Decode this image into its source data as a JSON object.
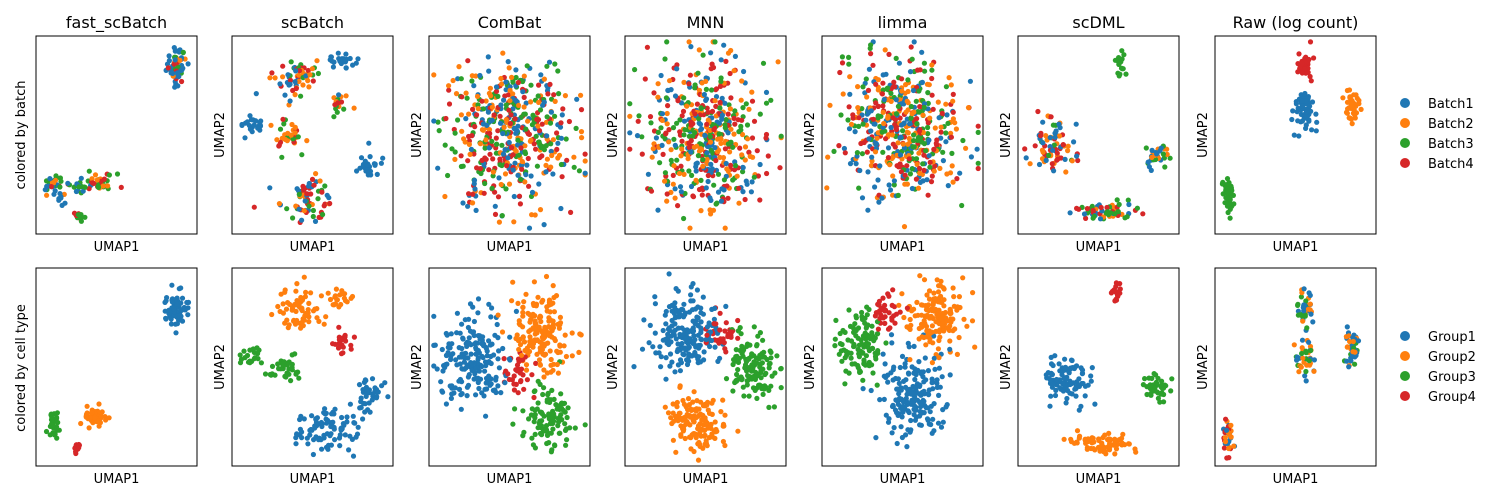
{
  "figure": {
    "row_labels": [
      "colored by batch",
      "colored by cell type"
    ],
    "batch_legend": [
      {
        "label": "Batch1",
        "color": "#1f77b4"
      },
      {
        "label": "Batch2",
        "color": "#ff7f0e"
      },
      {
        "label": "Batch3",
        "color": "#2ca02c"
      },
      {
        "label": "Batch4",
        "color": "#d62728"
      }
    ],
    "type_legend": [
      {
        "label": "Group1",
        "color": "#1f77b4"
      },
      {
        "label": "Group2",
        "color": "#ff7f0e"
      },
      {
        "label": "Group3",
        "color": "#2ca02c"
      },
      {
        "label": "Group4",
        "color": "#d62728"
      }
    ]
  },
  "chart_data": [
    {
      "type": "scatter",
      "title": "fast_scBatch",
      "xlabel": "UMAP1",
      "ylabel": "",
      "color_by": "batch",
      "xlim": [
        0,
        1
      ],
      "ylim": [
        0,
        1
      ],
      "clusters": [
        {
          "x": 0.87,
          "y": 0.85,
          "sx": 0.04,
          "sy": 0.06,
          "n": 60,
          "groups": [
            0,
            0,
            0,
            1,
            2,
            3
          ]
        },
        {
          "x": 0.1,
          "y": 0.25,
          "sx": 0.05,
          "sy": 0.03,
          "n": 30,
          "groups": [
            0,
            2,
            3,
            1
          ]
        },
        {
          "x": 0.4,
          "y": 0.26,
          "sx": 0.06,
          "sy": 0.03,
          "n": 35,
          "groups": [
            1,
            2,
            3
          ]
        },
        {
          "x": 0.26,
          "y": 0.24,
          "sx": 0.04,
          "sy": 0.03,
          "n": 18,
          "groups": [
            0,
            2
          ]
        },
        {
          "x": 0.27,
          "y": 0.09,
          "sx": 0.02,
          "sy": 0.02,
          "n": 10,
          "groups": [
            2,
            3
          ]
        },
        {
          "x": 0.15,
          "y": 0.17,
          "sx": 0.02,
          "sy": 0.02,
          "n": 8,
          "groups": [
            0
          ]
        }
      ]
    },
    {
      "type": "scatter",
      "title": "scBatch",
      "xlabel": "UMAP1",
      "ylabel": "UMAP2",
      "color_by": "batch",
      "xlim": [
        0,
        1
      ],
      "ylim": [
        0,
        1
      ],
      "clusters": [
        {
          "x": 0.38,
          "y": 0.79,
          "sx": 0.09,
          "sy": 0.07,
          "n": 60,
          "groups": [
            0,
            1,
            2,
            3
          ]
        },
        {
          "x": 0.68,
          "y": 0.87,
          "sx": 0.07,
          "sy": 0.03,
          "n": 25,
          "groups": [
            0
          ]
        },
        {
          "x": 0.66,
          "y": 0.65,
          "sx": 0.04,
          "sy": 0.05,
          "n": 18,
          "groups": [
            0,
            1,
            2,
            3
          ]
        },
        {
          "x": 0.12,
          "y": 0.55,
          "sx": 0.05,
          "sy": 0.03,
          "n": 22,
          "groups": [
            0
          ]
        },
        {
          "x": 0.34,
          "y": 0.5,
          "sx": 0.07,
          "sy": 0.05,
          "n": 35,
          "groups": [
            1,
            2,
            3
          ]
        },
        {
          "x": 0.47,
          "y": 0.18,
          "sx": 0.11,
          "sy": 0.07,
          "n": 70,
          "groups": [
            0,
            1,
            2,
            3
          ]
        },
        {
          "x": 0.84,
          "y": 0.34,
          "sx": 0.05,
          "sy": 0.05,
          "n": 30,
          "groups": [
            0
          ]
        }
      ]
    },
    {
      "type": "scatter",
      "title": "ComBat",
      "xlabel": "UMAP1",
      "ylabel": "UMAP2",
      "color_by": "batch",
      "xlim": [
        0,
        1
      ],
      "ylim": [
        0,
        1
      ],
      "clusters": [
        {
          "x": 0.5,
          "y": 0.5,
          "sx": 0.25,
          "sy": 0.24,
          "n": 520,
          "groups": [
            0,
            1,
            2,
            3
          ]
        }
      ]
    },
    {
      "type": "scatter",
      "title": "MNN",
      "xlabel": "UMAP1",
      "ylabel": "UMAP2",
      "color_by": "batch",
      "xlim": [
        0,
        1
      ],
      "ylim": [
        0,
        1
      ],
      "clusters": [
        {
          "x": 0.5,
          "y": 0.5,
          "sx": 0.24,
          "sy": 0.24,
          "n": 520,
          "groups": [
            0,
            1,
            2,
            3
          ]
        }
      ]
    },
    {
      "type": "scatter",
      "title": "limma",
      "xlabel": "UMAP1",
      "ylabel": "UMAP2",
      "color_by": "batch",
      "xlim": [
        0,
        1
      ],
      "ylim": [
        0,
        1
      ],
      "clusters": [
        {
          "x": 0.5,
          "y": 0.53,
          "sx": 0.24,
          "sy": 0.23,
          "n": 520,
          "groups": [
            0,
            1,
            2,
            3
          ]
        }
      ]
    },
    {
      "type": "scatter",
      "title": "scDML",
      "xlabel": "UMAP1",
      "ylabel": "UMAP2",
      "color_by": "batch",
      "xlim": [
        0,
        1
      ],
      "ylim": [
        0,
        1
      ],
      "clusters": [
        {
          "x": 0.63,
          "y": 0.87,
          "sx": 0.02,
          "sy": 0.04,
          "n": 18,
          "groups": [
            2
          ]
        },
        {
          "x": 0.23,
          "y": 0.44,
          "sx": 0.09,
          "sy": 0.08,
          "n": 80,
          "groups": [
            0,
            1,
            2,
            3
          ]
        },
        {
          "x": 0.86,
          "y": 0.4,
          "sx": 0.05,
          "sy": 0.05,
          "n": 35,
          "groups": [
            0,
            1,
            2
          ]
        },
        {
          "x": 0.53,
          "y": 0.11,
          "sx": 0.14,
          "sy": 0.03,
          "n": 60,
          "groups": [
            0,
            1,
            2,
            3
          ]
        }
      ]
    },
    {
      "type": "scatter",
      "title": "Raw (log count)",
      "xlabel": "UMAP1",
      "ylabel": "UMAP2",
      "color_by": "batch",
      "xlim": [
        0,
        1
      ],
      "ylim": [
        0,
        1
      ],
      "clusters": [
        {
          "x": 0.55,
          "y": 0.85,
          "sx": 0.03,
          "sy": 0.04,
          "n": 35,
          "groups": [
            3
          ]
        },
        {
          "x": 0.56,
          "y": 0.64,
          "sx": 0.04,
          "sy": 0.07,
          "n": 55,
          "groups": [
            0
          ]
        },
        {
          "x": 0.85,
          "y": 0.64,
          "sx": 0.03,
          "sy": 0.06,
          "n": 45,
          "groups": [
            1
          ]
        },
        {
          "x": 0.08,
          "y": 0.19,
          "sx": 0.02,
          "sy": 0.07,
          "n": 45,
          "groups": [
            2
          ]
        }
      ]
    },
    {
      "type": "scatter",
      "title": "",
      "xlabel": "UMAP1",
      "ylabel": "",
      "color_by": "cell type",
      "xlim": [
        0,
        1
      ],
      "ylim": [
        0,
        1
      ],
      "clusters": [
        {
          "x": 0.87,
          "y": 0.8,
          "sx": 0.04,
          "sy": 0.07,
          "n": 70,
          "groups": [
            0
          ]
        },
        {
          "x": 0.11,
          "y": 0.21,
          "sx": 0.03,
          "sy": 0.04,
          "n": 30,
          "groups": [
            2
          ]
        },
        {
          "x": 0.37,
          "y": 0.25,
          "sx": 0.06,
          "sy": 0.03,
          "n": 40,
          "groups": [
            1
          ]
        },
        {
          "x": 0.26,
          "y": 0.09,
          "sx": 0.02,
          "sy": 0.02,
          "n": 12,
          "groups": [
            3
          ]
        }
      ]
    },
    {
      "type": "scatter",
      "title": "",
      "xlabel": "UMAP1",
      "ylabel": "UMAP2",
      "color_by": "cell type",
      "xlim": [
        0,
        1
      ],
      "ylim": [
        0,
        1
      ],
      "clusters": [
        {
          "x": 0.43,
          "y": 0.8,
          "sx": 0.09,
          "sy": 0.07,
          "n": 70,
          "groups": [
            1
          ]
        },
        {
          "x": 0.68,
          "y": 0.84,
          "sx": 0.05,
          "sy": 0.03,
          "n": 20,
          "groups": [
            1
          ]
        },
        {
          "x": 0.68,
          "y": 0.62,
          "sx": 0.04,
          "sy": 0.05,
          "n": 22,
          "groups": [
            3
          ]
        },
        {
          "x": 0.11,
          "y": 0.55,
          "sx": 0.05,
          "sy": 0.03,
          "n": 20,
          "groups": [
            2
          ]
        },
        {
          "x": 0.33,
          "y": 0.49,
          "sx": 0.07,
          "sy": 0.04,
          "n": 35,
          "groups": [
            2
          ]
        },
        {
          "x": 0.6,
          "y": 0.18,
          "sx": 0.13,
          "sy": 0.08,
          "n": 90,
          "groups": [
            0
          ]
        },
        {
          "x": 0.84,
          "y": 0.36,
          "sx": 0.06,
          "sy": 0.05,
          "n": 35,
          "groups": [
            0
          ]
        }
      ]
    },
    {
      "type": "scatter",
      "title": "",
      "xlabel": "UMAP1",
      "ylabel": "UMAP2",
      "color_by": "cell type",
      "xlim": [
        0,
        1
      ],
      "ylim": [
        0,
        1
      ],
      "clusters": [
        {
          "x": 0.28,
          "y": 0.55,
          "sx": 0.14,
          "sy": 0.15,
          "n": 190,
          "groups": [
            0
          ]
        },
        {
          "x": 0.7,
          "y": 0.67,
          "sx": 0.12,
          "sy": 0.14,
          "n": 170,
          "groups": [
            1
          ]
        },
        {
          "x": 0.74,
          "y": 0.24,
          "sx": 0.11,
          "sy": 0.1,
          "n": 110,
          "groups": [
            2
          ]
        },
        {
          "x": 0.55,
          "y": 0.48,
          "sx": 0.06,
          "sy": 0.07,
          "n": 35,
          "groups": [
            3
          ]
        }
      ]
    },
    {
      "type": "scatter",
      "title": "",
      "xlabel": "UMAP1",
      "ylabel": "UMAP2",
      "color_by": "cell type",
      "xlim": [
        0,
        1
      ],
      "ylim": [
        0,
        1
      ],
      "clusters": [
        {
          "x": 0.38,
          "y": 0.67,
          "sx": 0.14,
          "sy": 0.13,
          "n": 190,
          "groups": [
            0
          ]
        },
        {
          "x": 0.45,
          "y": 0.22,
          "sx": 0.13,
          "sy": 0.1,
          "n": 140,
          "groups": [
            1
          ]
        },
        {
          "x": 0.79,
          "y": 0.5,
          "sx": 0.09,
          "sy": 0.12,
          "n": 130,
          "groups": [
            2
          ]
        },
        {
          "x": 0.6,
          "y": 0.67,
          "sx": 0.07,
          "sy": 0.06,
          "n": 35,
          "groups": [
            3
          ]
        }
      ]
    },
    {
      "type": "scatter",
      "title": "",
      "xlabel": "UMAP1",
      "ylabel": "UMAP2",
      "color_by": "cell type",
      "xlim": [
        0,
        1
      ],
      "ylim": [
        0,
        1
      ],
      "clusters": [
        {
          "x": 0.55,
          "y": 0.35,
          "sx": 0.13,
          "sy": 0.15,
          "n": 190,
          "groups": [
            0
          ]
        },
        {
          "x": 0.7,
          "y": 0.75,
          "sx": 0.12,
          "sy": 0.11,
          "n": 150,
          "groups": [
            1
          ]
        },
        {
          "x": 0.23,
          "y": 0.62,
          "sx": 0.09,
          "sy": 0.11,
          "n": 110,
          "groups": [
            2
          ]
        },
        {
          "x": 0.42,
          "y": 0.77,
          "sx": 0.06,
          "sy": 0.06,
          "n": 35,
          "groups": [
            3
          ]
        }
      ]
    },
    {
      "type": "scatter",
      "title": "",
      "xlabel": "UMAP1",
      "ylabel": "UMAP2",
      "color_by": "cell type",
      "xlim": [
        0,
        1
      ],
      "ylim": [
        0,
        1
      ],
      "clusters": [
        {
          "x": 0.61,
          "y": 0.87,
          "sx": 0.02,
          "sy": 0.04,
          "n": 18,
          "groups": [
            3
          ]
        },
        {
          "x": 0.3,
          "y": 0.43,
          "sx": 0.1,
          "sy": 0.09,
          "n": 90,
          "groups": [
            0
          ]
        },
        {
          "x": 0.86,
          "y": 0.39,
          "sx": 0.05,
          "sy": 0.05,
          "n": 40,
          "groups": [
            2
          ]
        },
        {
          "x": 0.5,
          "y": 0.11,
          "sx": 0.14,
          "sy": 0.03,
          "n": 75,
          "groups": [
            1
          ]
        }
      ]
    },
    {
      "type": "scatter",
      "title": "",
      "xlabel": "UMAP1",
      "ylabel": "UMAP2",
      "color_by": "cell type",
      "xlim": [
        0,
        1
      ],
      "ylim": [
        0,
        1
      ],
      "clusters": [
        {
          "x": 0.56,
          "y": 0.79,
          "sx": 0.03,
          "sy": 0.07,
          "n": 40,
          "groups": [
            0,
            1,
            2
          ]
        },
        {
          "x": 0.57,
          "y": 0.54,
          "sx": 0.04,
          "sy": 0.06,
          "n": 40,
          "groups": [
            0,
            1,
            2
          ]
        },
        {
          "x": 0.85,
          "y": 0.59,
          "sx": 0.03,
          "sy": 0.06,
          "n": 40,
          "groups": [
            0,
            1,
            2
          ]
        },
        {
          "x": 0.08,
          "y": 0.16,
          "sx": 0.02,
          "sy": 0.06,
          "n": 35,
          "groups": [
            0,
            1,
            3
          ]
        }
      ]
    }
  ]
}
